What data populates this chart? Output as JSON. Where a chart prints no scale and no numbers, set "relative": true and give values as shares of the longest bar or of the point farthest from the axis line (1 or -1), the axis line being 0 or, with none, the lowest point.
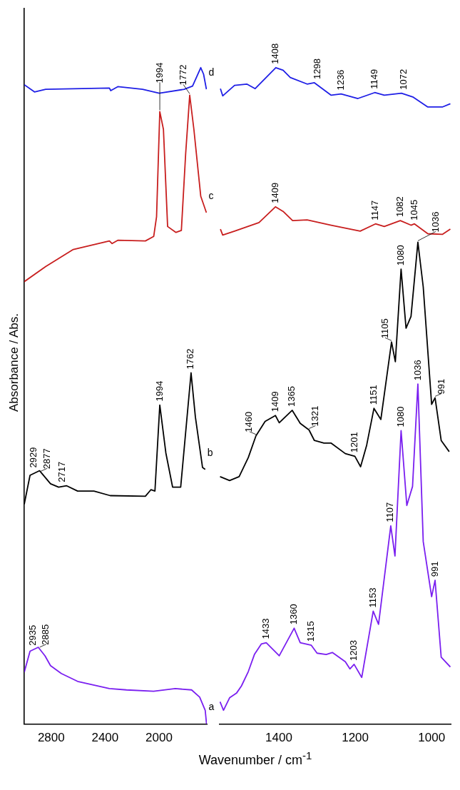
{
  "chart_data": [
    {
      "type": "line",
      "relative": true,
      "xlim": [
        3000,
        1645
      ],
      "xticks": [
        2800,
        2400,
        2000
      ],
      "ylabel": "Absorbance / Abs.",
      "series": [
        {
          "name": "d",
          "color": "#1f1fe6",
          "x": [
            3000,
            2924,
            2841,
            2368,
            2358,
            2306,
            2122,
            1998,
            1813,
            1751,
            1690,
            1669,
            1648
          ],
          "values": [
            0.974,
            0.963,
            0.967,
            0.969,
            0.965,
            0.971,
            0.967,
            0.961,
            0.967,
            0.972,
            1.0,
            0.99,
            0.967
          ]
        },
        {
          "name": "c",
          "color": "#c81e1e",
          "x": [
            3000,
            2841,
            2636,
            2368,
            2348,
            2306,
            2101,
            2039,
            2018,
            1994,
            1967,
            1936,
            1874,
            1834,
            1802,
            1772,
            1741,
            1690,
            1648
          ],
          "values": [
            0.674,
            0.697,
            0.723,
            0.736,
            0.732,
            0.737,
            0.736,
            0.743,
            0.773,
            0.933,
            0.906,
            0.758,
            0.749,
            0.752,
            0.869,
            0.958,
            0.906,
            0.804,
            0.779
          ]
        },
        {
          "name": "b",
          "color": "#000000",
          "x": [
            3000,
            2957,
            2886,
            2805,
            2745,
            2685,
            2604,
            2483,
            2362,
            2101,
            2060,
            2030,
            1994,
            1949,
            1899,
            1839,
            1762,
            1730,
            1677,
            1657
          ],
          "values": [
            0.335,
            0.379,
            0.386,
            0.366,
            0.361,
            0.363,
            0.355,
            0.355,
            0.348,
            0.347,
            0.357,
            0.355,
            0.486,
            0.413,
            0.361,
            0.361,
            0.535,
            0.468,
            0.391,
            0.388
          ]
        },
        {
          "name": "a",
          "color": "#7a1ff0",
          "x": [
            3000,
            2957,
            2896,
            2846,
            2805,
            2725,
            2604,
            2368,
            2241,
            2040,
            1879,
            1758,
            1698,
            1657,
            1647
          ],
          "values": [
            0.079,
            0.111,
            0.117,
            0.104,
            0.089,
            0.077,
            0.065,
            0.054,
            0.052,
            0.05,
            0.054,
            0.052,
            0.041,
            0.021,
            0.0
          ]
        }
      ],
      "annotations": [
        {
          "text": "2929",
          "x": 2929,
          "y": 0.385
        },
        {
          "text": "2877",
          "x": 2877,
          "y": 0.383
        },
        {
          "text": "2717",
          "x": 2717,
          "y": 0.363
        },
        {
          "text": "1994",
          "x": 1994,
          "y": 0.486
        },
        {
          "text": "1762",
          "x": 1762,
          "y": 0.535
        },
        {
          "text": "1994",
          "x": 1994,
          "y": 0.933
        },
        {
          "text": "1772",
          "x": 1772,
          "y": 0.958
        },
        {
          "text": "2935",
          "x": 2935,
          "y": 0.114
        },
        {
          "text": "2885",
          "x": 2885,
          "y": 0.115
        }
      ]
    },
    {
      "type": "line",
      "relative": true,
      "xlim": [
        1555,
        950
      ],
      "xticks": [
        1400,
        1200,
        1000
      ],
      "xlabel": "Wavenumber / cm$^{-1}$",
      "series": [
        {
          "color": "#1f1fe6",
          "x": [
            1553,
            1547,
            1516,
            1484,
            1462,
            1408,
            1389,
            1370,
            1326,
            1307,
            1263,
            1237,
            1193,
            1149,
            1124,
            1079,
            1048,
            1010,
            972,
            951
          ],
          "values": [
            0.968,
            0.957,
            0.973,
            0.975,
            0.968,
            1.0,
            0.996,
            0.985,
            0.975,
            0.977,
            0.958,
            0.96,
            0.953,
            0.962,
            0.958,
            0.961,
            0.955,
            0.94,
            0.94,
            0.945
          ]
        },
        {
          "color": "#c81e1e",
          "x": [
            1553,
            1547,
            1516,
            1452,
            1409,
            1389,
            1364,
            1326,
            1263,
            1187,
            1147,
            1124,
            1082,
            1054,
            1045,
            1010,
            972,
            951
          ],
          "values": [
            0.754,
            0.745,
            0.751,
            0.764,
            0.788,
            0.781,
            0.767,
            0.768,
            0.76,
            0.751,
            0.762,
            0.758,
            0.767,
            0.76,
            0.762,
            0.747,
            0.746,
            0.754
          ]
        },
        {
          "color": "#000000",
          "x": [
            1554,
            1529,
            1504,
            1480,
            1460,
            1436,
            1409,
            1399,
            1365,
            1344,
            1321,
            1307,
            1282,
            1263,
            1226,
            1201,
            1186,
            1170,
            1151,
            1133,
            1105,
            1095,
            1080,
            1067,
            1054,
            1036,
            1022,
            1000,
            991,
            975,
            954
          ],
          "values": [
            0.377,
            0.371,
            0.377,
            0.406,
            0.439,
            0.461,
            0.47,
            0.459,
            0.478,
            0.458,
            0.448,
            0.432,
            0.428,
            0.428,
            0.412,
            0.408,
            0.392,
            0.425,
            0.481,
            0.464,
            0.582,
            0.552,
            0.693,
            0.603,
            0.621,
            0.734,
            0.666,
            0.487,
            0.497,
            0.432,
            0.415
          ]
        },
        {
          "color": "#7a1ff0",
          "x": [
            1554,
            1545,
            1529,
            1511,
            1498,
            1480,
            1464,
            1446,
            1433,
            1399,
            1360,
            1344,
            1315,
            1300,
            1276,
            1260,
            1226,
            1214,
            1203,
            1183,
            1153,
            1139,
            1107,
            1096,
            1080,
            1065,
            1050,
            1036,
            1022,
            1000,
            991,
            975,
            951
          ],
          "values": [
            0.034,
            0.021,
            0.04,
            0.047,
            0.058,
            0.08,
            0.106,
            0.122,
            0.124,
            0.104,
            0.146,
            0.124,
            0.12,
            0.108,
            0.106,
            0.109,
            0.095,
            0.084,
            0.091,
            0.071,
            0.172,
            0.152,
            0.302,
            0.256,
            0.447,
            0.333,
            0.362,
            0.518,
            0.278,
            0.194,
            0.219,
            0.102,
            0.087
          ]
        }
      ],
      "annotations": [
        {
          "text": "1408",
          "x": 1408,
          "y": 1.0
        },
        {
          "text": "1298",
          "x": 1298,
          "y": 0.977
        },
        {
          "text": "1236",
          "x": 1236,
          "y": 0.96
        },
        {
          "text": "1149",
          "x": 1149,
          "y": 0.962
        },
        {
          "text": "1072",
          "x": 1072,
          "y": 0.961
        },
        {
          "text": "1409",
          "x": 1409,
          "y": 0.788
        },
        {
          "text": "1147",
          "x": 1147,
          "y": 0.762
        },
        {
          "text": "1082",
          "x": 1082,
          "y": 0.767
        },
        {
          "text": "1045",
          "x": 1045,
          "y": 0.762
        },
        {
          "text": "1460",
          "x": 1460,
          "y": 0.439
        },
        {
          "text": "1409",
          "x": 1409,
          "y": 0.47
        },
        {
          "text": "1365",
          "x": 1365,
          "y": 0.478
        },
        {
          "text": "1321",
          "x": 1321,
          "y": 0.448
        },
        {
          "text": "1201",
          "x": 1201,
          "y": 0.408
        },
        {
          "text": "1151",
          "x": 1151,
          "y": 0.481
        },
        {
          "text": "1105",
          "x": 1105,
          "y": 0.582
        },
        {
          "text": "1080",
          "x": 1080,
          "y": 0.693
        },
        {
          "text": "1036",
          "x": 1036,
          "y": 0.734
        },
        {
          "text": "991",
          "x": 991,
          "y": 0.497
        },
        {
          "text": "1433",
          "x": 1433,
          "y": 0.124
        },
        {
          "text": "1360",
          "x": 1360,
          "y": 0.146
        },
        {
          "text": "1315",
          "x": 1315,
          "y": 0.12
        },
        {
          "text": "1203",
          "x": 1203,
          "y": 0.091
        },
        {
          "text": "1153",
          "x": 1153,
          "y": 0.172
        },
        {
          "text": "1107",
          "x": 1107,
          "y": 0.302
        },
        {
          "text": "1080",
          "x": 1080,
          "y": 0.447
        },
        {
          "text": "1036",
          "x": 1036,
          "y": 0.518
        },
        {
          "text": "991",
          "x": 991,
          "y": 0.219
        }
      ]
    }
  ]
}
